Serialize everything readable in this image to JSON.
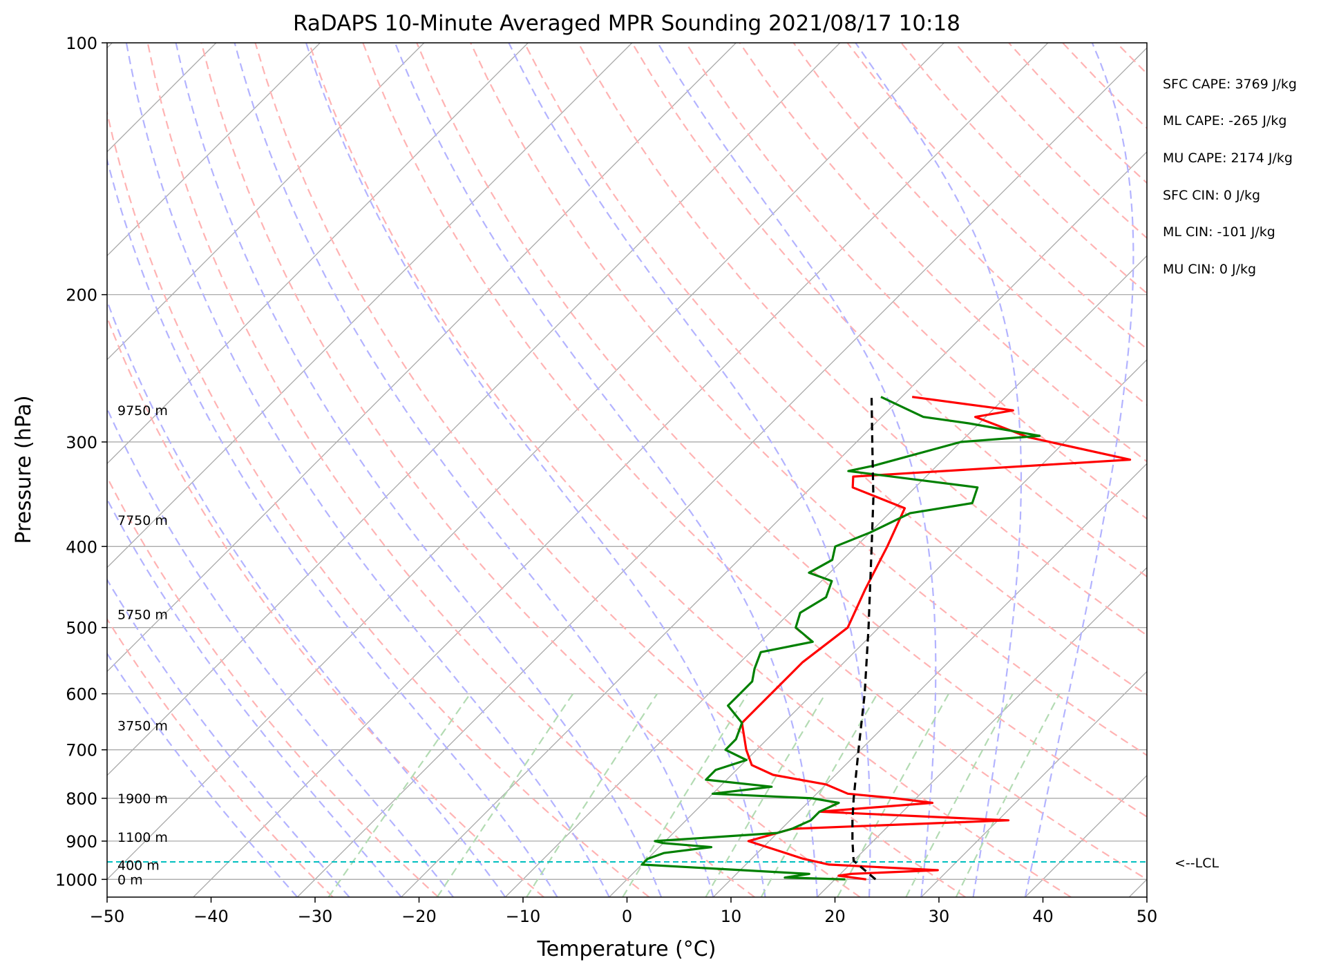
{
  "chart_data": {
    "type": "line",
    "title": "RaDAPS 10-Minute Averaged MPR Sounding 2021/08/17 10:18",
    "xlabel": "Temperature (°C)",
    "ylabel": "Pressure (hPa)",
    "xlim": [
      -50,
      50
    ],
    "ylim": [
      1050,
      100
    ],
    "y_scale": "log",
    "x_ticks": [
      -50,
      -40,
      -30,
      -20,
      -10,
      0,
      10,
      20,
      30,
      40,
      50
    ],
    "x_tick_labels": [
      "−50",
      "−40",
      "−30",
      "−20",
      "−10",
      "0",
      "10",
      "20",
      "30",
      "40",
      "50"
    ],
    "y_ticks": [
      100,
      200,
      300,
      400,
      500,
      600,
      700,
      800,
      900,
      1000
    ],
    "y_tick_labels": [
      "100",
      "200",
      "300",
      "400",
      "500",
      "600",
      "700",
      "800",
      "900",
      "1000"
    ],
    "grid": true,
    "skew": "skew-T log-p",
    "series": [
      {
        "role": "temperature",
        "color": "#ff0000",
        "points": [
          [
            1000,
            23
          ],
          [
            990,
            20
          ],
          [
            985,
            21
          ],
          [
            975,
            29
          ],
          [
            960,
            18
          ],
          [
            945,
            15
          ],
          [
            900,
            8
          ],
          [
            870,
            11
          ],
          [
            850,
            31
          ],
          [
            830,
            12
          ],
          [
            810,
            22
          ],
          [
            800,
            18
          ],
          [
            790,
            13
          ],
          [
            770,
            10
          ],
          [
            750,
            4
          ],
          [
            730,
            1
          ],
          [
            700,
            -1
          ],
          [
            650,
            -4
          ],
          [
            600,
            -4
          ],
          [
            550,
            -4
          ],
          [
            500,
            -3
          ],
          [
            450,
            -5
          ],
          [
            400,
            -7
          ],
          [
            360,
            -9
          ],
          [
            340,
            -16
          ],
          [
            330,
            -17
          ],
          [
            315,
            8
          ],
          [
            296,
            -4
          ],
          [
            280,
            -11
          ],
          [
            275,
            -8
          ],
          [
            265,
            -19
          ]
        ]
      },
      {
        "role": "dewpoint",
        "color": "#008000",
        "points": [
          [
            1000,
            21
          ],
          [
            995,
            15
          ],
          [
            985,
            17
          ],
          [
            960,
            0
          ],
          [
            945,
            0
          ],
          [
            930,
            1
          ],
          [
            915,
            5
          ],
          [
            905,
            0
          ],
          [
            900,
            -1
          ],
          [
            880,
            10
          ],
          [
            870,
            11
          ],
          [
            850,
            12
          ],
          [
            830,
            12
          ],
          [
            810,
            13
          ],
          [
            800,
            10
          ],
          [
            790,
            0
          ],
          [
            775,
            5
          ],
          [
            760,
            -2
          ],
          [
            740,
            -2
          ],
          [
            720,
            0
          ],
          [
            700,
            -3
          ],
          [
            680,
            -3
          ],
          [
            650,
            -4
          ],
          [
            620,
            -7
          ],
          [
            600,
            -7
          ],
          [
            580,
            -7
          ],
          [
            560,
            -8
          ],
          [
            535,
            -9
          ],
          [
            520,
            -5
          ],
          [
            500,
            -8
          ],
          [
            480,
            -9
          ],
          [
            460,
            -8
          ],
          [
            440,
            -9
          ],
          [
            430,
            -12
          ],
          [
            415,
            -11
          ],
          [
            400,
            -12
          ],
          [
            385,
            -10
          ],
          [
            365,
            -8
          ],
          [
            355,
            -3
          ],
          [
            340,
            -4
          ],
          [
            325,
            -18
          ],
          [
            320,
            -16
          ],
          [
            300,
            -10
          ],
          [
            295,
            -3
          ],
          [
            285,
            -11
          ],
          [
            280,
            -16
          ],
          [
            265,
            -22
          ]
        ]
      },
      {
        "role": "parcel",
        "color": "#000000",
        "style": "dashed",
        "points": [
          [
            1000,
            23.9
          ],
          [
            950,
            20.0
          ],
          [
            900,
            18.0
          ],
          [
            850,
            16.0
          ],
          [
            800,
            14.0
          ],
          [
            700,
            9.8
          ],
          [
            600,
            5.0
          ],
          [
            500,
            -1.0
          ],
          [
            400,
            -8.5
          ],
          [
            350,
            -13.0
          ],
          [
            300,
            -18.5
          ],
          [
            265,
            -22.9
          ]
        ]
      }
    ],
    "lcl_pressure": 953,
    "lcl_label": "<--LCL",
    "height_labels": [
      {
        "text": "9750 m",
        "p": 275
      },
      {
        "text": "7750 m",
        "p": 372
      },
      {
        "text": "5750 m",
        "p": 482
      },
      {
        "text": "3750 m",
        "p": 655
      },
      {
        "text": "1900 m",
        "p": 800
      },
      {
        "text": "1100 m",
        "p": 890
      },
      {
        "text": "400 m",
        "p": 961
      },
      {
        "text": "0 m",
        "p": 1000
      }
    ],
    "stats": [
      "SFC CAPE: 3769 J/kg",
      "ML CAPE: -265 J/kg",
      "MU CAPE: 2174 J/kg",
      "SFC CIN: 0 J/kg",
      "ML CIN: -101 J/kg",
      "MU CIN: 0 J/kg"
    ],
    "colors": {
      "dry_adiabats": "#ffb3b3",
      "moist_adiabats": "#b3b3ff",
      "mixing_ratio": "#b3dbb3",
      "isotherms": "#aaaaaa",
      "lcl_line": "#00bfbf"
    }
  }
}
